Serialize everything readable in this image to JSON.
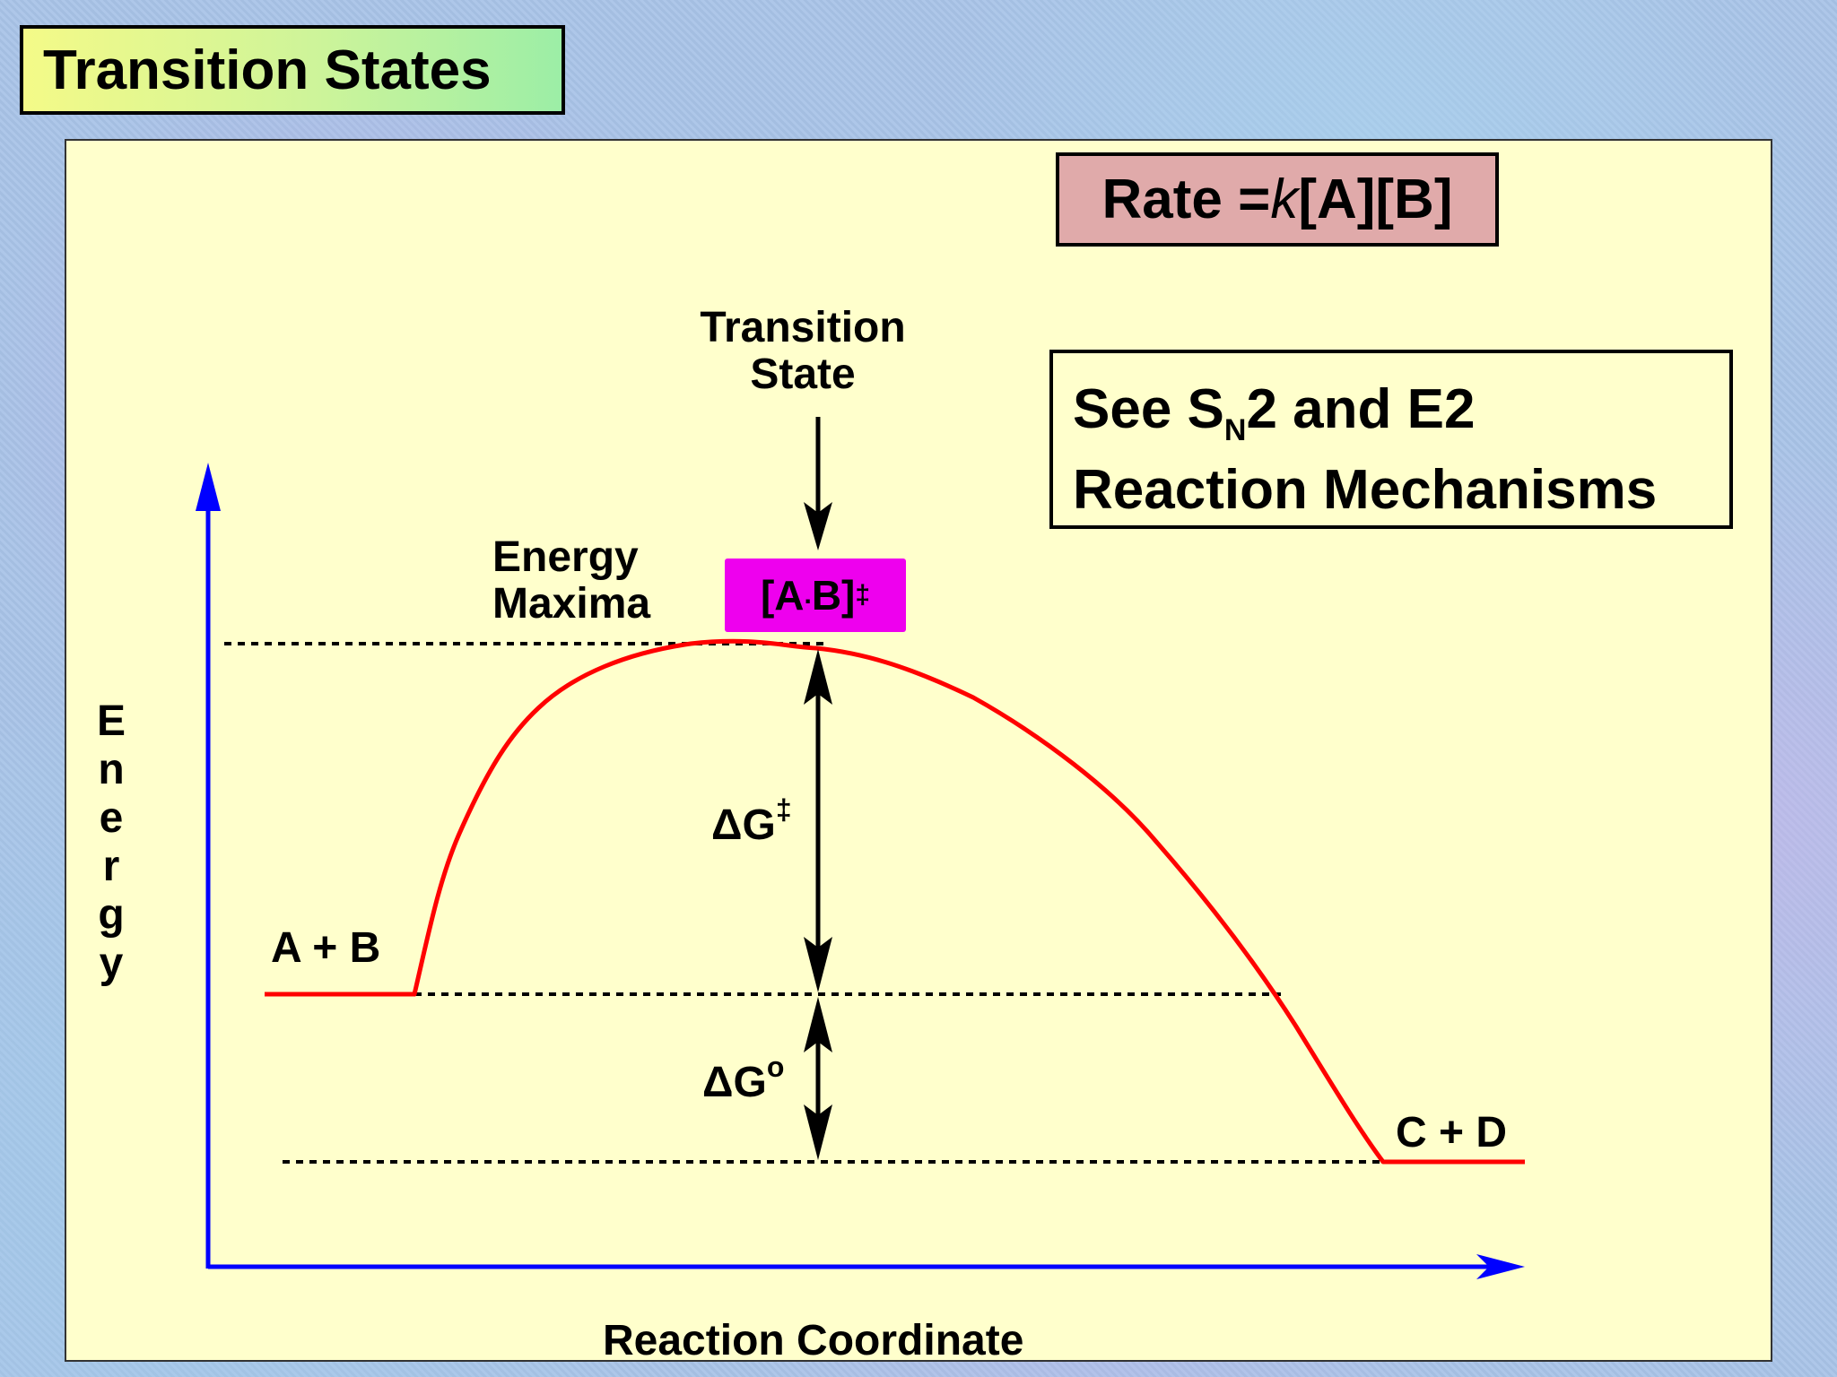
{
  "title": "Transition States",
  "rate_law": {
    "prefix": "Rate = ",
    "k": "k",
    "suffix": "[A][B]"
  },
  "mechanism_note": {
    "line1_pre": "See S",
    "line1_sub": "N",
    "line1_post": "2 and E2",
    "line2": "Reaction Mechanisms"
  },
  "transition_state_label": {
    "line1": "Transition",
    "line2": "State"
  },
  "energy_maxima_label": {
    "line1": "Energy",
    "line2": "Maxima"
  },
  "activated_complex": {
    "pre": "[A",
    "dot": ".",
    "post": "B]",
    "sup": "‡"
  },
  "delta_g_activation": {
    "base": "ΔG",
    "sup": "‡"
  },
  "delta_g_standard": {
    "base": "ΔG",
    "sup": "o"
  },
  "reactants": "A + B",
  "products": "C + D",
  "y_axis_label": "Energy",
  "x_axis_label": "Reaction Coordinate",
  "colors": {
    "axes": "#0000ff",
    "curve": "#ff0000",
    "panel": "#ffffcc",
    "rate_box": "#e0aaaa",
    "complex_box": "#ee00ee"
  }
}
